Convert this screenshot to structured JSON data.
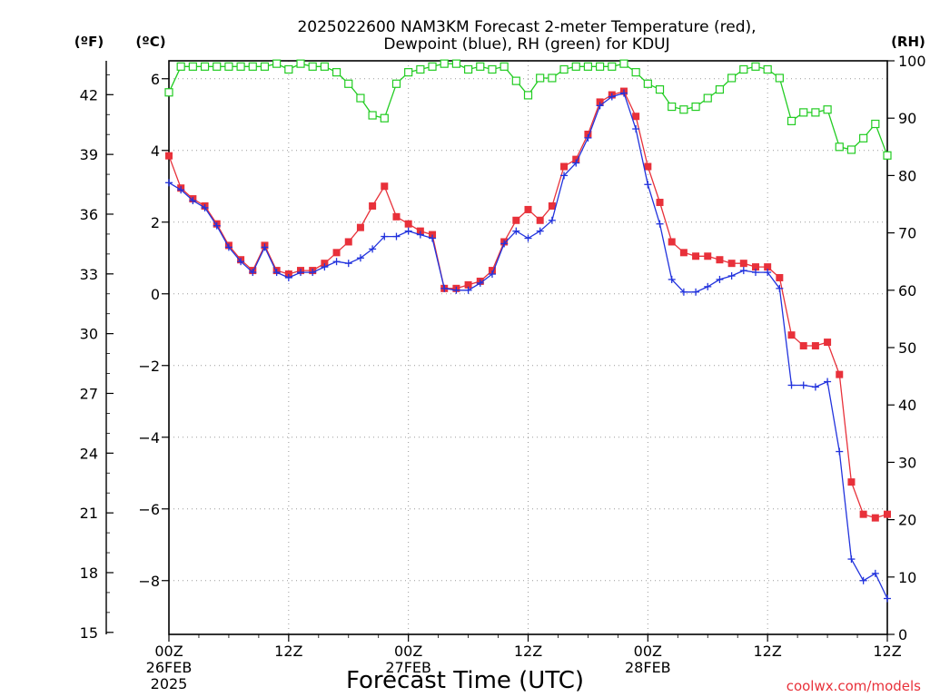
{
  "chart_data": {
    "type": "line",
    "title": [
      "2025022600 NAM3KM Forecast 2-meter Temperature (red),",
      "Dewpoint (blue), RH (green) for KDUJ"
    ],
    "xlabel": "Forecast Time (UTC)",
    "credit": "coolwx.com/models",
    "unit_labels": {
      "fahrenheit": "(ºF)",
      "celsius": "(ºC)",
      "rh": "(RH)"
    },
    "x_hours_range": [
      0,
      72
    ],
    "x_ticks": [
      {
        "hour": 0,
        "lines": [
          "00Z",
          "26FEB",
          "2025"
        ]
      },
      {
        "hour": 12,
        "lines": [
          "12Z"
        ]
      },
      {
        "hour": 24,
        "lines": [
          "00Z",
          "27FEB"
        ]
      },
      {
        "hour": 36,
        "lines": [
          "12Z"
        ]
      },
      {
        "hour": 48,
        "lines": [
          "00Z",
          "28FEB"
        ]
      },
      {
        "hour": 60,
        "lines": [
          "12Z"
        ]
      }
    ],
    "ylim_c": [
      -9.5,
      6.5
    ],
    "y_ticks_c": [
      {
        "v": 6,
        "label": "6"
      },
      {
        "v": 4,
        "label": "4"
      },
      {
        "v": 2,
        "label": "2"
      },
      {
        "v": 0,
        "label": "0"
      },
      {
        "v": -2,
        "label": "−2"
      },
      {
        "v": -4,
        "label": "−4"
      },
      {
        "v": -6,
        "label": "−6"
      },
      {
        "v": -8,
        "label": "−8"
      }
    ],
    "y_ticks_f": [
      "15",
      "18",
      "21",
      "24",
      "27",
      "30",
      "33",
      "36",
      "39",
      "42"
    ],
    "ylim_rh": [
      0,
      100
    ],
    "y_ticks_rh": [
      "0",
      "10",
      "20",
      "30",
      "40",
      "50",
      "60",
      "70",
      "80",
      "90",
      "100"
    ],
    "grid": true,
    "series": [
      {
        "name": "Temperature",
        "color": "#e8313a",
        "marker": "filled-square",
        "axis": "celsius",
        "values": [
          3.85,
          2.95,
          2.65,
          2.45,
          1.95,
          1.35,
          0.95,
          0.65,
          1.35,
          0.65,
          0.55,
          0.65,
          0.65,
          0.85,
          1.15,
          1.45,
          1.85,
          2.45,
          3.0,
          2.15,
          1.95,
          1.75,
          1.65,
          0.15,
          0.15,
          0.25,
          0.35,
          0.65,
          1.45,
          2.05,
          2.35,
          2.05,
          2.45,
          3.55,
          3.75,
          4.45,
          5.35,
          5.55,
          5.65,
          4.95,
          3.55,
          2.55,
          1.45,
          1.15,
          1.05,
          1.05,
          0.95,
          0.85,
          0.85,
          0.75,
          0.75,
          0.45,
          -1.15,
          -1.45,
          -1.45,
          -1.35,
          -2.25,
          -5.25,
          -6.15,
          -6.25,
          -6.15
        ]
      },
      {
        "name": "Dewpoint",
        "color": "#2233dd",
        "marker": "plus",
        "axis": "celsius",
        "values": [
          3.1,
          2.9,
          2.6,
          2.4,
          1.9,
          1.3,
          0.9,
          0.6,
          1.3,
          0.6,
          0.45,
          0.6,
          0.6,
          0.75,
          0.9,
          0.85,
          1.0,
          1.25,
          1.6,
          1.6,
          1.75,
          1.65,
          1.55,
          0.15,
          0.1,
          0.1,
          0.3,
          0.55,
          1.4,
          1.75,
          1.55,
          1.75,
          2.05,
          3.3,
          3.65,
          4.35,
          5.25,
          5.5,
          5.6,
          4.6,
          3.05,
          1.95,
          0.4,
          0.05,
          0.05,
          0.2,
          0.4,
          0.5,
          0.65,
          0.6,
          0.6,
          0.15,
          -2.55,
          -2.55,
          -2.6,
          -2.45,
          -4.4,
          -7.4,
          -8.0,
          -7.8,
          -8.5
        ]
      },
      {
        "name": "RH",
        "color": "#22cc22",
        "marker": "open-square",
        "axis": "rh",
        "values": [
          94.5,
          99,
          99,
          99,
          99,
          99,
          99,
          99,
          99,
          99.5,
          98.5,
          99.5,
          99,
          99,
          98,
          96,
          93.5,
          90.5,
          90,
          96,
          98,
          98.5,
          99,
          99.5,
          99.5,
          98.5,
          99,
          98.5,
          99,
          96.5,
          94,
          97,
          97,
          98.5,
          99,
          99,
          99,
          99,
          99.5,
          98,
          96,
          95,
          92,
          91.5,
          92,
          93.5,
          95,
          97,
          98.5,
          99,
          98.5,
          97,
          89.5,
          91,
          91,
          91.5,
          85,
          84.5,
          86.5,
          89,
          83.5
        ]
      }
    ]
  }
}
